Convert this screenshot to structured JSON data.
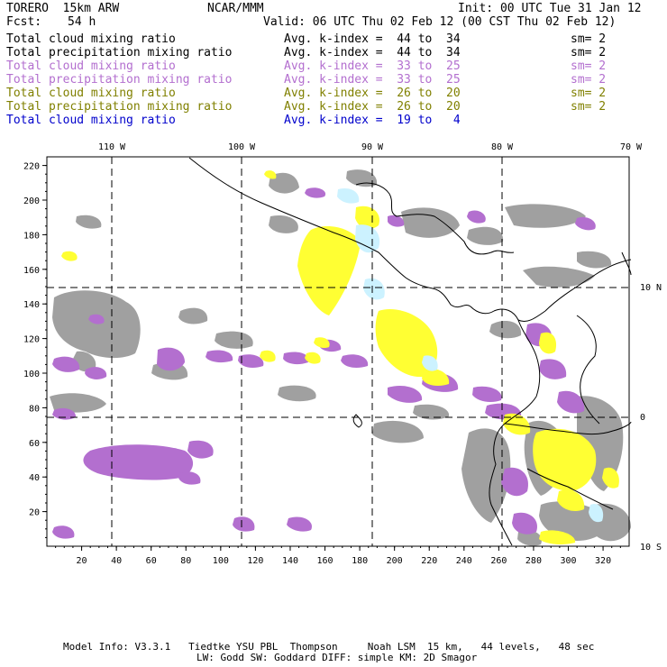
{
  "header": {
    "model": "TORERO  15km ARW",
    "org": "NCAR/MMM",
    "init": "Init: 00 UTC Tue 31 Jan 12",
    "fcst_label": "Fcst:",
    "fcst_value": "54 h",
    "valid": "Valid: 06 UTC Thu 02 Feb 12 (00 CST Thu 02 Feb 12)"
  },
  "fields": [
    {
      "name": "Total cloud mixing ratio",
      "kindex": "Avg. k-index =  44 to  34",
      "sm": "sm= 2",
      "color": "#000000"
    },
    {
      "name": "Total precipitation mixing ratio",
      "kindex": "Avg. k-index =  44 to  34",
      "sm": "sm= 2",
      "color": "#000000"
    },
    {
      "name": "Total cloud mixing ratio",
      "kindex": "Avg. k-index =  33 to  25",
      "sm": "sm= 2",
      "color": "#b36fcf"
    },
    {
      "name": "Total precipitation mixing ratio",
      "kindex": "Avg. k-index =  33 to  25",
      "sm": "sm= 2",
      "color": "#b36fcf"
    },
    {
      "name": "Total cloud mixing ratio",
      "kindex": "Avg. k-index =  26 to  20",
      "sm": "sm= 2",
      "color": "#808000"
    },
    {
      "name": "Total precipitation mixing ratio",
      "kindex": "Avg. k-index =  26 to  20",
      "sm": "sm= 2",
      "color": "#808000"
    },
    {
      "name": "Total cloud mixing ratio",
      "kindex": "Avg. k-index =  19 to   4",
      "sm": "",
      "color": "#0000cc"
    }
  ],
  "map": {
    "lon_labels": [
      "110 W",
      "100 W",
      "90 W",
      "80 W",
      "70 W"
    ],
    "lat_labels": [
      "10 N",
      "0",
      "10 S"
    ],
    "x_ticks": [
      "20",
      "40",
      "60",
      "80",
      "100",
      "120",
      "140",
      "160",
      "180",
      "200",
      "220",
      "240",
      "260",
      "280",
      "300",
      "320"
    ],
    "y_ticks": [
      "20",
      "40",
      "60",
      "80",
      "100",
      "120",
      "140",
      "160",
      "180",
      "200",
      "220"
    ],
    "colors": {
      "gray": "#a0a0a0",
      "purple": "#b36fcf",
      "yellow": "#ffff33",
      "cyan": "#ccf2ff",
      "coast": "#000000",
      "grid": "#000000"
    }
  },
  "footer": {
    "line1": "Model Info: V3.3.1   Tiedtke YSU PBL  Thompson     Noah LSM  15 km,   44 levels,   48 sec",
    "line2": "LW: Godd SW: Goddard DIFF: simple KM: 2D Smagor"
  }
}
